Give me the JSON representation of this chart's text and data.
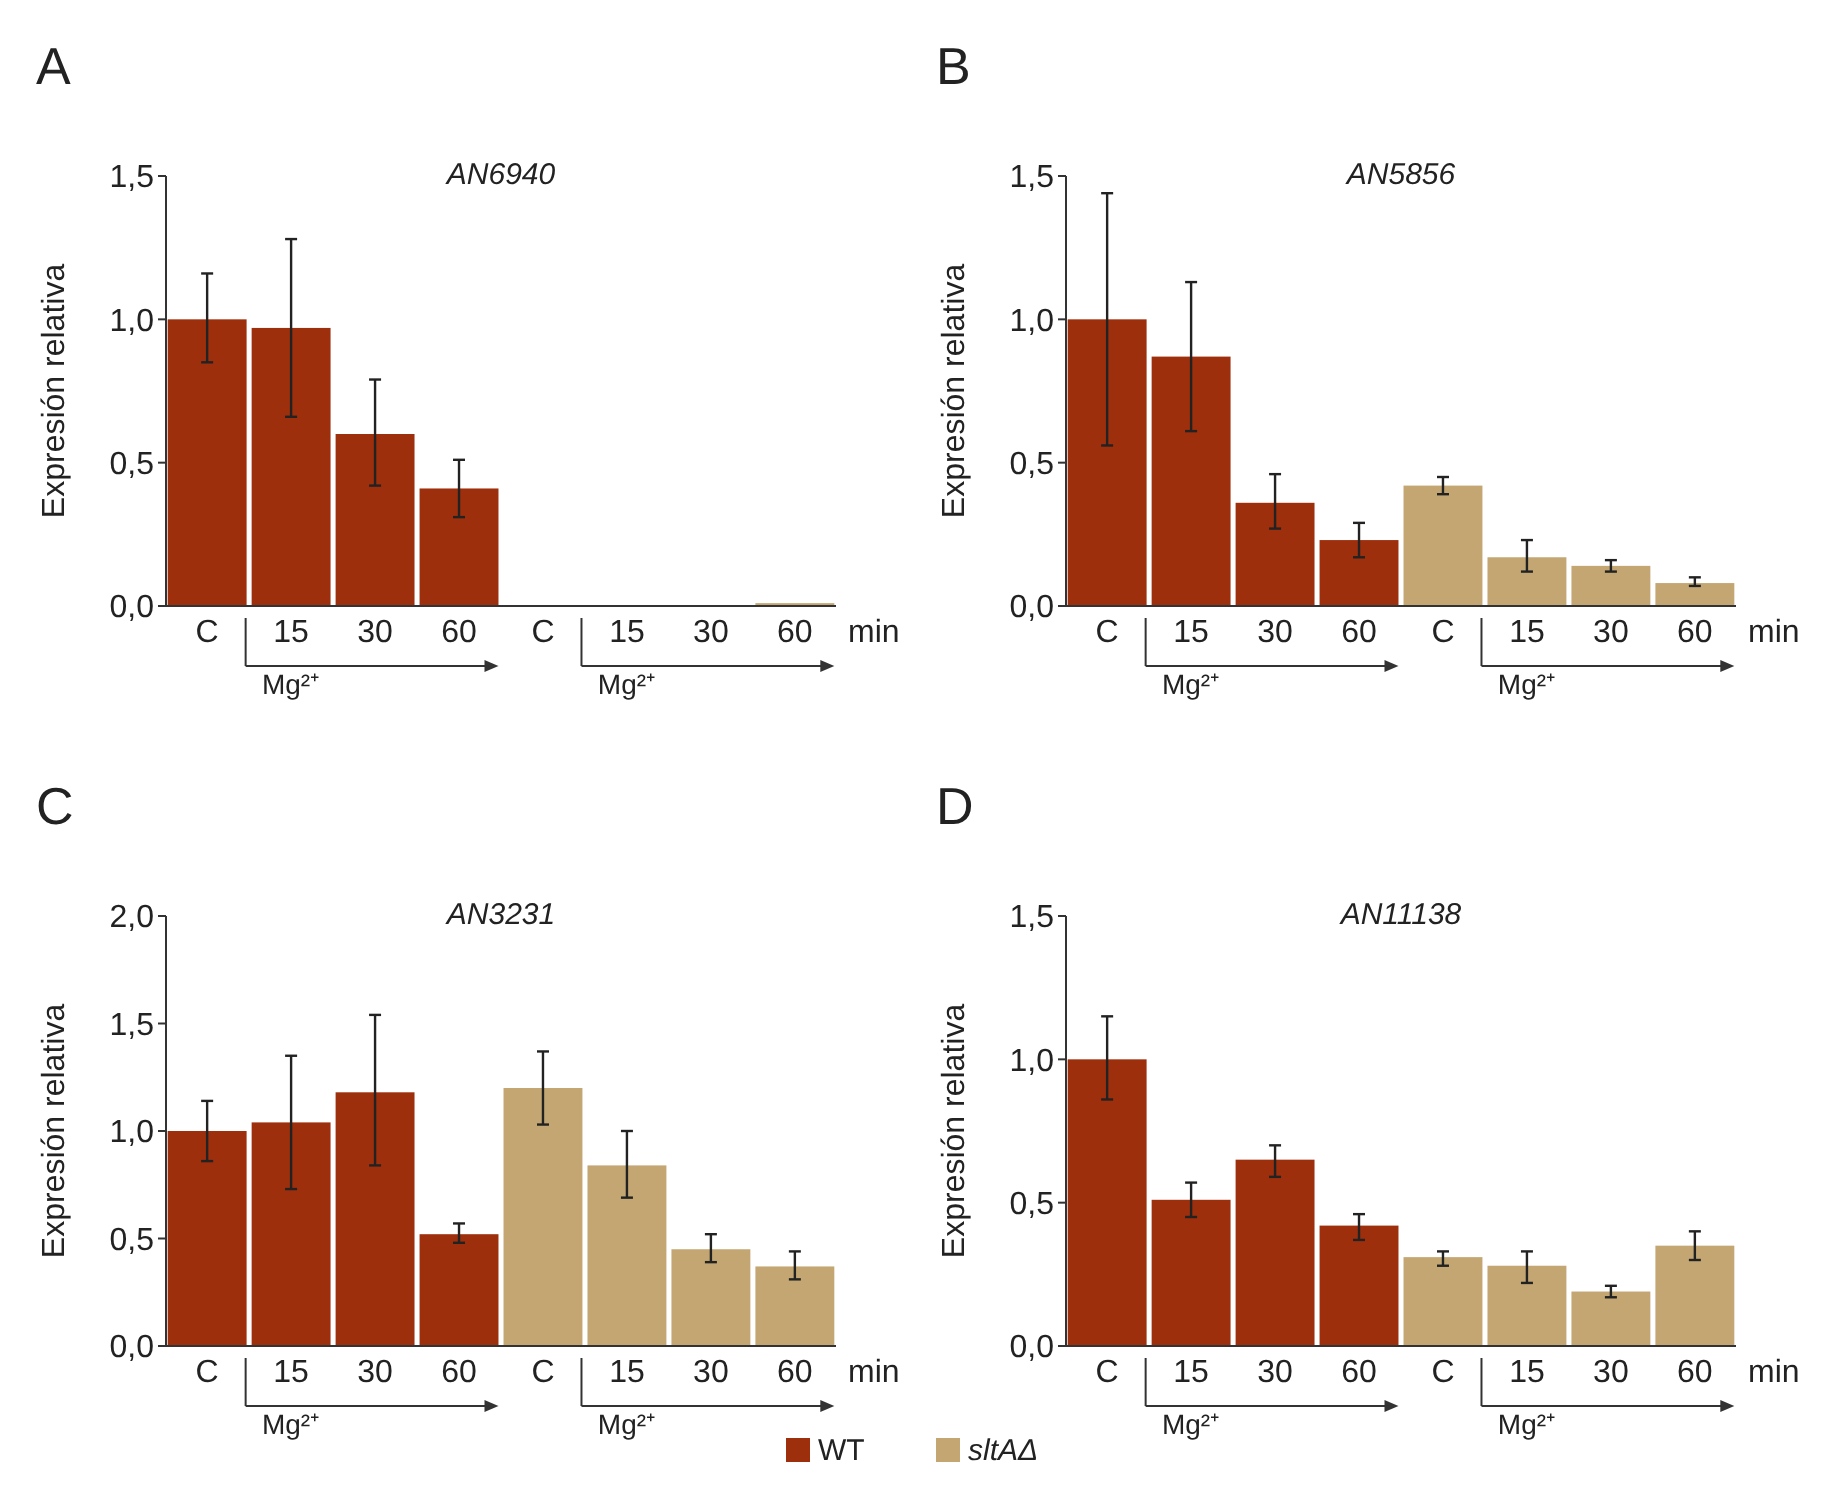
{
  "chart_data": [
    {
      "type": "bar",
      "title": "AN6940",
      "ylabel": "Expresión relativa",
      "xlabel": "min",
      "legend": "bottom",
      "annotations": [
        "A",
        "Mg²⁺",
        "Mg²⁺"
      ],
      "categories": [
        "C",
        "15",
        "30",
        "60",
        "C",
        "15",
        "30",
        "60"
      ],
      "ylim": [
        0,
        1.5
      ],
      "yticks": [
        {
          "value": 0,
          "label": "0,0"
        },
        {
          "value": 0.5,
          "label": "0,5"
        },
        {
          "value": 1,
          "label": "1,0"
        },
        {
          "value": 1.5,
          "label": "1,5"
        }
      ],
      "series": [
        {
          "name": "WT",
          "color": "#9e2f0c",
          "values": [
            1.0,
            0.97,
            0.6,
            0.41,
            null,
            null,
            null,
            null
          ],
          "errors": [
            [
              0.85,
              1.16
            ],
            [
              0.66,
              1.28
            ],
            [
              0.42,
              0.79
            ],
            [
              0.31,
              0.51
            ],
            null,
            null,
            null,
            null
          ]
        },
        {
          "name": "sltAΔ",
          "color": "#c4a672",
          "values": [
            null,
            null,
            null,
            null,
            null,
            null,
            null,
            0.01
          ]
        }
      ]
    },
    {
      "type": "bar",
      "title": "AN5856",
      "ylabel": "Expresión relativa",
      "xlabel": "min",
      "annotations": [
        "B",
        "Mg²⁺",
        "Mg²⁺"
      ],
      "categories": [
        "C",
        "15",
        "30",
        "60",
        "C",
        "15",
        "30",
        "60"
      ],
      "ylim": [
        0,
        1.5
      ],
      "yticks": [
        {
          "value": 0,
          "label": "0,0"
        },
        {
          "value": 0.5,
          "label": "0,5"
        },
        {
          "value": 1,
          "label": "1,0"
        },
        {
          "value": 1.5,
          "label": "1,5"
        }
      ],
      "series": [
        {
          "color": "#9e2f0c",
          "values": [
            1.0,
            0.87,
            0.36,
            0.23,
            null,
            null,
            null,
            null
          ],
          "errors": [
            [
              0.56,
              1.44
            ],
            [
              0.61,
              1.13
            ],
            [
              0.27,
              0.46
            ],
            [
              0.17,
              0.29
            ],
            null,
            null,
            null,
            null
          ]
        },
        {
          "color": "#c4a672",
          "values": [
            null,
            null,
            null,
            null,
            0.42,
            0.17,
            0.14,
            0.08
          ],
          "errors": [
            null,
            null,
            null,
            null,
            [
              0.39,
              0.45
            ],
            [
              0.12,
              0.23
            ],
            [
              0.12,
              0.16
            ],
            [
              0.07,
              0.1
            ]
          ]
        }
      ]
    },
    {
      "type": "bar",
      "title": "AN3231",
      "ylabel": "Expresión relativa",
      "xlabel": "min",
      "annotations": [
        "C",
        "Mg²⁺",
        "Mg²⁺"
      ],
      "categories": [
        "C",
        "15",
        "30",
        "60",
        "C",
        "15",
        "30",
        "60"
      ],
      "ylim": [
        0,
        2
      ],
      "yticks": [
        {
          "value": 0,
          "label": "0,0"
        },
        {
          "value": 0.5,
          "label": "0,5"
        },
        {
          "value": 1,
          "label": "1,0"
        },
        {
          "value": 1.5,
          "label": "1,5"
        },
        {
          "value": 2,
          "label": "2,0"
        }
      ],
      "series": [
        {
          "color": "#9e2f0c",
          "values": [
            1.0,
            1.04,
            1.18,
            0.52,
            null,
            null,
            null,
            null
          ],
          "errors": [
            [
              0.86,
              1.14
            ],
            [
              0.73,
              1.35
            ],
            [
              0.84,
              1.54
            ],
            [
              0.48,
              0.57
            ],
            null,
            null,
            null,
            null
          ]
        },
        {
          "color": "#c4a672",
          "values": [
            null,
            null,
            null,
            null,
            1.2,
            0.84,
            0.45,
            0.37
          ],
          "errors": [
            null,
            null,
            null,
            null,
            [
              1.03,
              1.37
            ],
            [
              0.69,
              1.0
            ],
            [
              0.39,
              0.52
            ],
            [
              0.31,
              0.44
            ]
          ]
        }
      ]
    },
    {
      "type": "bar",
      "title": "AN11138",
      "ylabel": "Expresión relativa",
      "xlabel": "min",
      "annotations": [
        "D",
        "Mg²⁺",
        "Mg²⁺"
      ],
      "categories": [
        "C",
        "15",
        "30",
        "60",
        "C",
        "15",
        "30",
        "60"
      ],
      "ylim": [
        0,
        1.5
      ],
      "yticks": [
        {
          "value": 0,
          "label": "0,0"
        },
        {
          "value": 0.5,
          "label": "0,5"
        },
        {
          "value": 1,
          "label": "1,0"
        },
        {
          "value": 1.5,
          "label": "1,5"
        }
      ],
      "series": [
        {
          "color": "#9e2f0c",
          "values": [
            1.0,
            0.51,
            0.65,
            0.42,
            null,
            null,
            null,
            null
          ],
          "errors": [
            [
              0.86,
              1.15
            ],
            [
              0.45,
              0.57
            ],
            [
              0.59,
              0.7
            ],
            [
              0.37,
              0.46
            ],
            null,
            null,
            null,
            null
          ]
        },
        {
          "color": "#c4a672",
          "values": [
            null,
            null,
            null,
            null,
            0.31,
            0.28,
            0.19,
            0.35
          ],
          "errors": [
            null,
            null,
            null,
            null,
            [
              0.28,
              0.33
            ],
            [
              0.22,
              0.33
            ],
            [
              0.17,
              0.21
            ],
            [
              0.3,
              0.4
            ]
          ]
        }
      ]
    }
  ]
}
